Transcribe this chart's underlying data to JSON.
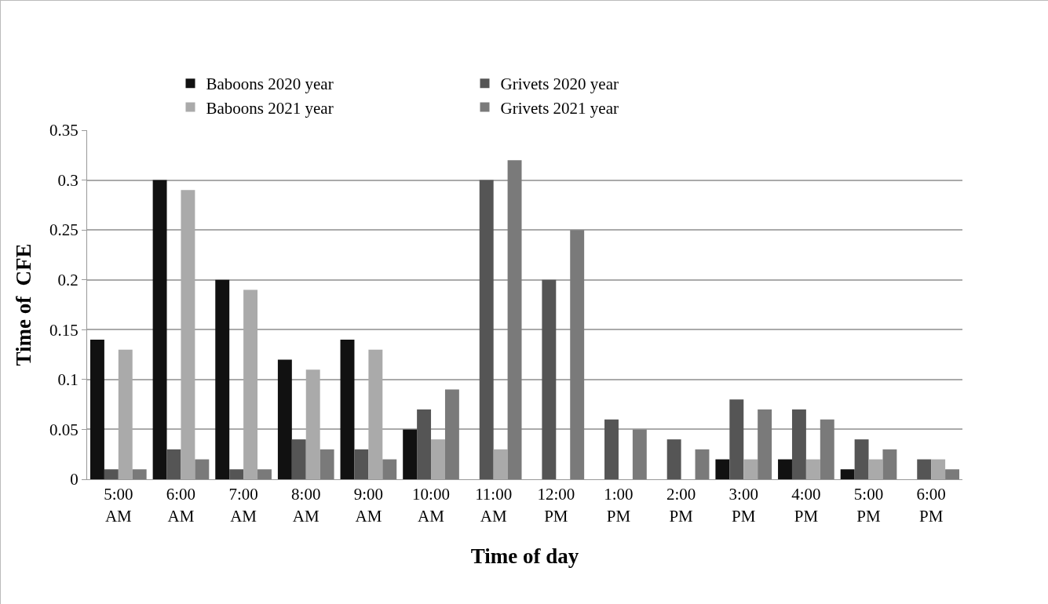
{
  "chart_data": {
    "type": "bar",
    "xlabel": "Time of day",
    "ylabel": "Time of  CFE",
    "categories": [
      "5:00 AM",
      "6:00 AM",
      "7:00 AM",
      "8:00 AM",
      "9:00 AM",
      "10:00 AM",
      "11:00 AM",
      "12:00 PM",
      "1:00 PM",
      "2:00 PM",
      "3:00 PM",
      "4:00 PM",
      "5:00 PM",
      "6:00 PM"
    ],
    "series": [
      {
        "name": "Baboons 2020 year",
        "color": "#111111",
        "values": [
          0.14,
          0.3,
          0.2,
          0.12,
          0.14,
          0.05,
          0,
          0,
          0,
          0,
          0.02,
          0.02,
          0.01,
          0
        ]
      },
      {
        "name": "Grivets 2020 year",
        "color": "#555555",
        "values": [
          0.01,
          0.03,
          0.01,
          0.04,
          0.03,
          0.07,
          0.3,
          0.2,
          0.06,
          0.04,
          0.08,
          0.07,
          0.04,
          0.02
        ]
      },
      {
        "name": "Baboons 2021 year",
        "color": "#aaaaaa",
        "values": [
          0.13,
          0.29,
          0.19,
          0.11,
          0.13,
          0.04,
          0.03,
          0,
          0,
          0,
          0.02,
          0.02,
          0.02,
          0.02
        ]
      },
      {
        "name": "Grivets 2021 year",
        "color": "#7a7a7a",
        "values": [
          0.01,
          0.02,
          0.01,
          0.03,
          0.02,
          0.09,
          0.32,
          0.25,
          0.05,
          0.03,
          0.07,
          0.06,
          0.03,
          0.01
        ]
      }
    ],
    "ylim": [
      0,
      0.35
    ],
    "yticks": [
      0,
      0.05,
      0.1,
      0.15,
      0.2,
      0.25,
      0.3,
      0.35
    ],
    "grid": "y",
    "legend": "top"
  }
}
